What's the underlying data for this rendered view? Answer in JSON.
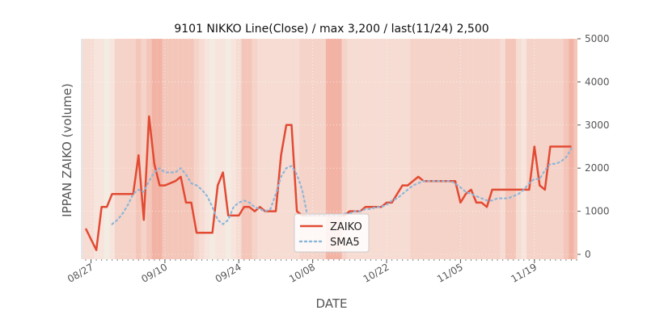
{
  "chart_data": {
    "type": "line",
    "title": "9101 NIKKO Line(Close) / max 3,200 / last(11/24) 2,500",
    "xlabel": "DATE",
    "ylabel": "IPPAN ZAIKO (volume)",
    "ylim": [
      0,
      5000
    ],
    "yticks": [
      0,
      1000,
      2000,
      3000,
      4000,
      5000
    ],
    "xtick_labels": [
      "08/27",
      "09/10",
      "09/24",
      "10/08",
      "10/22",
      "11/05",
      "11/19"
    ],
    "xtick_days": [
      2,
      16,
      30,
      44,
      58,
      72,
      86
    ],
    "x_days_range": [
      1,
      94
    ],
    "legend_position": "lower-center",
    "series": [
      {
        "name": "ZAIKO",
        "color": "#e24a33",
        "style": "solid",
        "days": [
          1,
          3,
          4,
          5,
          6,
          7,
          9,
          10,
          11,
          12,
          13,
          14,
          15,
          16,
          18,
          19,
          20,
          21,
          22,
          23,
          24,
          25,
          26,
          27,
          28,
          29,
          30,
          31,
          32,
          33,
          34,
          35,
          36,
          37,
          38,
          39,
          40,
          41,
          42,
          43,
          44,
          45,
          46,
          47,
          48,
          49,
          50,
          51,
          52,
          53,
          54,
          55,
          56,
          57,
          58,
          59,
          60,
          61,
          62,
          63,
          64,
          65,
          66,
          67,
          68,
          69,
          70,
          71,
          72,
          73,
          74,
          75,
          76,
          77,
          78,
          79,
          80,
          81,
          82,
          83,
          84,
          85,
          86,
          87,
          88,
          89,
          90,
          91,
          92,
          93
        ],
        "values": [
          600,
          100,
          1100,
          1100,
          1400,
          1400,
          1400,
          1400,
          2300,
          800,
          3200,
          2100,
          1600,
          1600,
          1700,
          1800,
          1200,
          1200,
          500,
          500,
          500,
          500,
          1600,
          1900,
          900,
          900,
          900,
          1100,
          1100,
          1000,
          1100,
          1000,
          1000,
          1000,
          2300,
          3000,
          3000,
          1000,
          900,
          900,
          900,
          900,
          900,
          900,
          900,
          900,
          900,
          1000,
          1000,
          1000,
          1100,
          1100,
          1100,
          1100,
          1200,
          1200,
          1400,
          1600,
          1600,
          1700,
          1800,
          1700,
          1700,
          1700,
          1700,
          1700,
          1700,
          1700,
          1200,
          1400,
          1500,
          1200,
          1200,
          1100,
          1500,
          1500,
          1500,
          1500,
          1500,
          1500,
          1500,
          1500,
          2500,
          1600,
          1500,
          2500,
          2500,
          2500,
          2500,
          2500
        ]
      },
      {
        "name": "SMA5",
        "color": "#8eb6d9",
        "style": "dotted",
        "days": [
          6,
          7,
          8,
          9,
          10,
          11,
          12,
          13,
          14,
          15,
          16,
          18,
          19,
          20,
          21,
          22,
          23,
          24,
          25,
          26,
          27,
          28,
          29,
          30,
          31,
          32,
          33,
          34,
          35,
          36,
          37,
          38,
          39,
          40,
          41,
          42,
          43,
          44,
          45,
          46,
          47,
          48,
          49,
          50,
          51,
          52,
          53,
          54,
          55,
          56,
          57,
          58,
          59,
          60,
          61,
          62,
          63,
          64,
          65,
          66,
          67,
          68,
          69,
          70,
          71,
          72,
          73,
          74,
          75,
          76,
          77,
          78,
          79,
          80,
          81,
          82,
          83,
          84,
          85,
          86,
          87,
          88,
          89,
          90,
          91,
          92,
          93
        ],
        "values": [
          700,
          800,
          950,
          1150,
          1400,
          1500,
          1450,
          1700,
          1900,
          2000,
          1900,
          1900,
          2000,
          1850,
          1650,
          1600,
          1500,
          1350,
          1100,
          800,
          700,
          800,
          1100,
          1200,
          1250,
          1200,
          1100,
          1050,
          1000,
          1050,
          1400,
          1800,
          2000,
          2050,
          1850,
          1500,
          900,
          900,
          900,
          900,
          900,
          900,
          900,
          950,
          950,
          1000,
          1000,
          1050,
          1050,
          1100,
          1100,
          1150,
          1250,
          1300,
          1400,
          1500,
          1600,
          1650,
          1700,
          1700,
          1700,
          1700,
          1700,
          1700,
          1650,
          1550,
          1450,
          1400,
          1350,
          1300,
          1250,
          1250,
          1300,
          1300,
          1300,
          1350,
          1400,
          1500,
          1650,
          1750,
          1750,
          1950,
          2100,
          2100,
          2150,
          2250,
          2450
        ]
      }
    ],
    "shading_intensity": [
      2,
      2,
      1,
      1,
      0,
      1,
      3,
      3,
      3,
      3,
      4,
      3,
      4,
      5,
      5,
      4,
      4,
      4,
      4,
      4,
      4,
      3,
      2,
      1,
      0,
      1,
      1,
      0,
      1,
      2,
      4,
      4,
      3,
      2,
      2,
      2,
      2,
      2,
      2,
      2,
      2,
      3,
      3,
      3,
      3,
      3,
      5,
      5,
      5,
      3,
      2,
      2,
      2,
      2,
      2,
      2,
      2,
      2,
      2,
      2,
      2,
      2,
      3,
      3,
      3,
      3,
      3,
      3,
      3,
      3,
      3,
      3,
      3,
      3,
      3,
      3,
      3,
      3,
      3,
      2,
      4,
      4,
      2,
      1,
      3,
      3,
      3,
      3,
      3,
      3,
      3,
      4,
      5,
      4,
      4,
      4
    ]
  }
}
